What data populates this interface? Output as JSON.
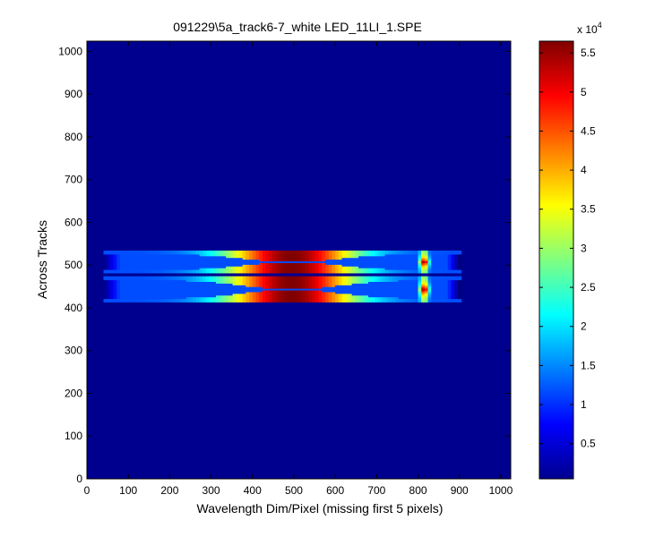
{
  "chart_data": {
    "type": "heatmap",
    "title": "091229\\5a_track6-7_white LED_11LI_1.SPE",
    "xlabel": "Wavelength Dim/Pixel (missing first 5 pixels)",
    "ylabel": "Across Tracks",
    "xlim": [
      0,
      1024
    ],
    "ylim": [
      0,
      1024
    ],
    "xticks": [
      0,
      100,
      200,
      300,
      400,
      500,
      600,
      700,
      800,
      900,
      1000
    ],
    "yticks": [
      0,
      100,
      200,
      300,
      400,
      500,
      600,
      700,
      800,
      900,
      1000
    ],
    "colormap": "jet",
    "background_color": "#00008F",
    "colorbar": {
      "min": 500,
      "max": 56500,
      "exponent_label": "x 10",
      "exponent": "4",
      "ticks": [
        0.5,
        1,
        1.5,
        2,
        2.5,
        3,
        3.5,
        4,
        4.5,
        5,
        5.5
      ]
    },
    "features": {
      "tracks": [
        {
          "name": "upper",
          "y_range": [
            482,
            534
          ]
        },
        {
          "name": "lower",
          "y_range": [
            414,
            474
          ]
        }
      ],
      "gap_y": 478,
      "x_range": [
        40,
        900
      ],
      "broad_peak_center_x": 495,
      "sharp_peak_center_x": 815,
      "peak_value": 56500,
      "baseline_value": 500
    }
  }
}
